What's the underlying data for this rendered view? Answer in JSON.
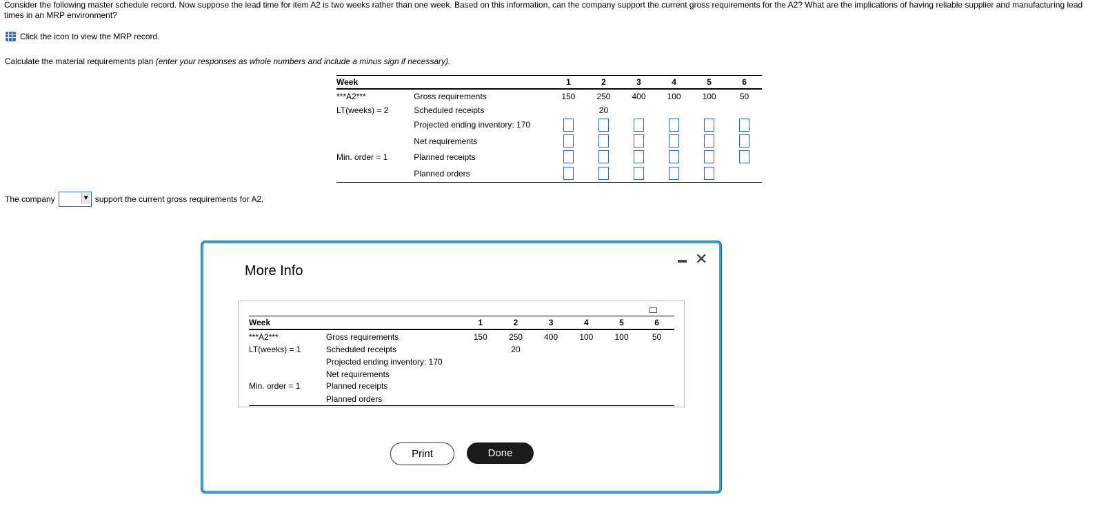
{
  "question": "Consider the following master schedule record. Now suppose the lead time for item A2 is two weeks rather than one week. Based on this information, can the company support the current gross requirements for the A2? What are the implications of having reliable supplier and manufacturing lead times in an MRP environment?",
  "mrp_link": {
    "icon": "table-icon",
    "label": "Click the icon to view the MRP record."
  },
  "instruction": {
    "text": "Calculate the material requirements plan ",
    "italic": "(enter your responses as whole numbers and include a minus sign if necessary)."
  },
  "main_table": {
    "week_label": "Week",
    "weeks": [
      "1",
      "2",
      "3",
      "4",
      "5",
      "6"
    ],
    "item": "***A2***",
    "lead_time": "LT(weeks) = 2",
    "min_order": "Min. order = 1",
    "rows": [
      {
        "label": "Gross requirements",
        "values": [
          "150",
          "250",
          "400",
          "100",
          "100",
          "50"
        ]
      },
      {
        "label": "Scheduled receipts",
        "values": [
          "",
          "20",
          "",
          "",
          "",
          ""
        ]
      },
      {
        "label": "Projected ending inventory: 170",
        "inputs": 6
      },
      {
        "label": "Net requirements",
        "inputs": 6
      },
      {
        "label": "Planned receipts",
        "inputs": 6
      },
      {
        "label": "Planned orders",
        "inputs": 5
      }
    ]
  },
  "answer": {
    "prefix": "The company",
    "selected": "",
    "suffix": "support the current gross requirements for A2."
  },
  "modal": {
    "title": "More Info",
    "table": {
      "week_label": "Week",
      "weeks": [
        "1",
        "2",
        "3",
        "4",
        "5",
        "6"
      ],
      "item": "***A2***",
      "lead_time": "LT(weeks) = 1",
      "min_order": "Min. order = 1",
      "rows": [
        {
          "label": "Gross requirements",
          "values": [
            "150",
            "250",
            "400",
            "100",
            "100",
            "50"
          ]
        },
        {
          "label": "Scheduled receipts",
          "values": [
            "",
            "20",
            "",
            "",
            "",
            ""
          ]
        },
        {
          "label": "Projected ending inventory: 170",
          "values": [
            "",
            "",
            "",
            "",
            "",
            ""
          ]
        },
        {
          "label": "Net requirements",
          "values": [
            "",
            "",
            "",
            "",
            "",
            ""
          ]
        },
        {
          "label": "Planned receipts",
          "values": [
            "",
            "",
            "",
            "",
            "",
            ""
          ]
        },
        {
          "label": "Planned orders",
          "values": [
            "",
            "",
            "",
            "",
            "",
            ""
          ]
        }
      ]
    },
    "print_label": "Print",
    "done_label": "Done"
  },
  "colors": {
    "accent": "#2c5fd0",
    "modal_border": "#3aa0e0",
    "done_bg": "#1a1a1a"
  }
}
